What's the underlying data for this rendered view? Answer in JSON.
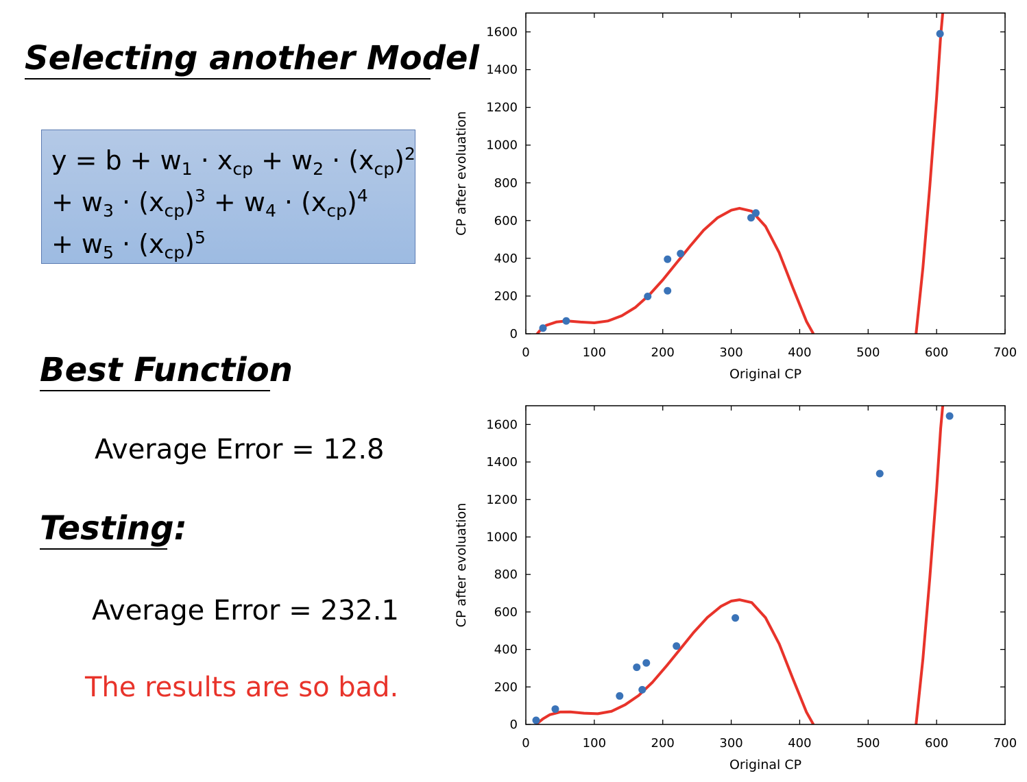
{
  "slide": {
    "title": "Selecting another Model",
    "formula": {
      "base": "y = b + w",
      "terms": [
        {
          "coef": "w",
          "idx": "1"
        },
        {
          "coef": "w",
          "idx": "2",
          "pow": "2"
        },
        {
          "coef": "w",
          "idx": "3",
          "pow": "3"
        },
        {
          "coef": "w",
          "idx": "4",
          "pow": "4"
        },
        {
          "coef": "w",
          "idx": "5",
          "pow": "5"
        }
      ],
      "var": "x",
      "var_sub": "cp"
    },
    "best_heading": "Best Function",
    "train_error": "Average Error = 12.8",
    "testing_heading": "Testing:",
    "test_error": "Average Error = 232.1",
    "note": "The results are so bad.",
    "note_color": "#e8332a"
  },
  "chart_data": [
    {
      "type": "scatter",
      "xlabel": "Original CP",
      "ylabel": "CP after evoluation",
      "xlim": [
        0,
        700
      ],
      "ylim": [
        0,
        1700
      ],
      "xticks": [
        0,
        100,
        200,
        300,
        400,
        500,
        600,
        700
      ],
      "yticks": [
        0,
        200,
        400,
        600,
        800,
        1000,
        1200,
        1400,
        1600
      ],
      "point_color": "#3a73b8",
      "curve_color": "#e8332a",
      "points": [
        {
          "x": 25,
          "y": 30
        },
        {
          "x": 59,
          "y": 68
        },
        {
          "x": 178,
          "y": 198
        },
        {
          "x": 207,
          "y": 228
        },
        {
          "x": 207,
          "y": 395
        },
        {
          "x": 226,
          "y": 425
        },
        {
          "x": 329,
          "y": 615
        },
        {
          "x": 336,
          "y": 640
        },
        {
          "x": 605,
          "y": 1590
        }
      ],
      "curve": [
        {
          "x": 10,
          "y": -30
        },
        {
          "x": 20,
          "y": 15
        },
        {
          "x": 30,
          "y": 45
        },
        {
          "x": 45,
          "y": 63
        },
        {
          "x": 60,
          "y": 68
        },
        {
          "x": 80,
          "y": 62
        },
        {
          "x": 100,
          "y": 58
        },
        {
          "x": 120,
          "y": 68
        },
        {
          "x": 140,
          "y": 95
        },
        {
          "x": 160,
          "y": 140
        },
        {
          "x": 180,
          "y": 205
        },
        {
          "x": 200,
          "y": 285
        },
        {
          "x": 220,
          "y": 375
        },
        {
          "x": 240,
          "y": 465
        },
        {
          "x": 260,
          "y": 550
        },
        {
          "x": 280,
          "y": 615
        },
        {
          "x": 300,
          "y": 655
        },
        {
          "x": 312,
          "y": 665
        },
        {
          "x": 330,
          "y": 650
        },
        {
          "x": 350,
          "y": 570
        },
        {
          "x": 370,
          "y": 430
        },
        {
          "x": 390,
          "y": 245
        },
        {
          "x": 410,
          "y": 65
        },
        {
          "x": 420,
          "y": 0
        }
      ],
      "curve2": [
        {
          "x": 570,
          "y": 0
        },
        {
          "x": 580,
          "y": 350
        },
        {
          "x": 590,
          "y": 780
        },
        {
          "x": 600,
          "y": 1250
        },
        {
          "x": 606,
          "y": 1580
        },
        {
          "x": 609,
          "y": 1700
        }
      ]
    },
    {
      "type": "scatter",
      "xlabel": "Original CP",
      "ylabel": "CP after evoluation",
      "xlim": [
        0,
        700
      ],
      "ylim": [
        0,
        1700
      ],
      "xticks": [
        0,
        100,
        200,
        300,
        400,
        500,
        600,
        700
      ],
      "yticks": [
        0,
        200,
        400,
        600,
        800,
        1000,
        1200,
        1400,
        1600
      ],
      "point_color": "#3a73b8",
      "curve_color": "#e8332a",
      "points": [
        {
          "x": 15,
          "y": 22
        },
        {
          "x": 43,
          "y": 82
        },
        {
          "x": 137,
          "y": 152
        },
        {
          "x": 162,
          "y": 305
        },
        {
          "x": 170,
          "y": 185
        },
        {
          "x": 176,
          "y": 328
        },
        {
          "x": 220,
          "y": 418
        },
        {
          "x": 306,
          "y": 568
        },
        {
          "x": 517,
          "y": 1338
        },
        {
          "x": 619,
          "y": 1645
        }
      ],
      "curve": [
        {
          "x": 15,
          "y": 0
        },
        {
          "x": 25,
          "y": 30
        },
        {
          "x": 35,
          "y": 52
        },
        {
          "x": 50,
          "y": 66
        },
        {
          "x": 65,
          "y": 67
        },
        {
          "x": 85,
          "y": 60
        },
        {
          "x": 105,
          "y": 57
        },
        {
          "x": 125,
          "y": 70
        },
        {
          "x": 145,
          "y": 105
        },
        {
          "x": 165,
          "y": 155
        },
        {
          "x": 185,
          "y": 225
        },
        {
          "x": 205,
          "y": 310
        },
        {
          "x": 225,
          "y": 400
        },
        {
          "x": 245,
          "y": 490
        },
        {
          "x": 265,
          "y": 570
        },
        {
          "x": 285,
          "y": 630
        },
        {
          "x": 300,
          "y": 658
        },
        {
          "x": 312,
          "y": 665
        },
        {
          "x": 330,
          "y": 650
        },
        {
          "x": 350,
          "y": 570
        },
        {
          "x": 370,
          "y": 430
        },
        {
          "x": 390,
          "y": 245
        },
        {
          "x": 410,
          "y": 65
        },
        {
          "x": 420,
          "y": 0
        }
      ],
      "curve2": [
        {
          "x": 570,
          "y": 0
        },
        {
          "x": 580,
          "y": 350
        },
        {
          "x": 590,
          "y": 780
        },
        {
          "x": 600,
          "y": 1250
        },
        {
          "x": 606,
          "y": 1580
        },
        {
          "x": 609,
          "y": 1700
        }
      ]
    }
  ]
}
